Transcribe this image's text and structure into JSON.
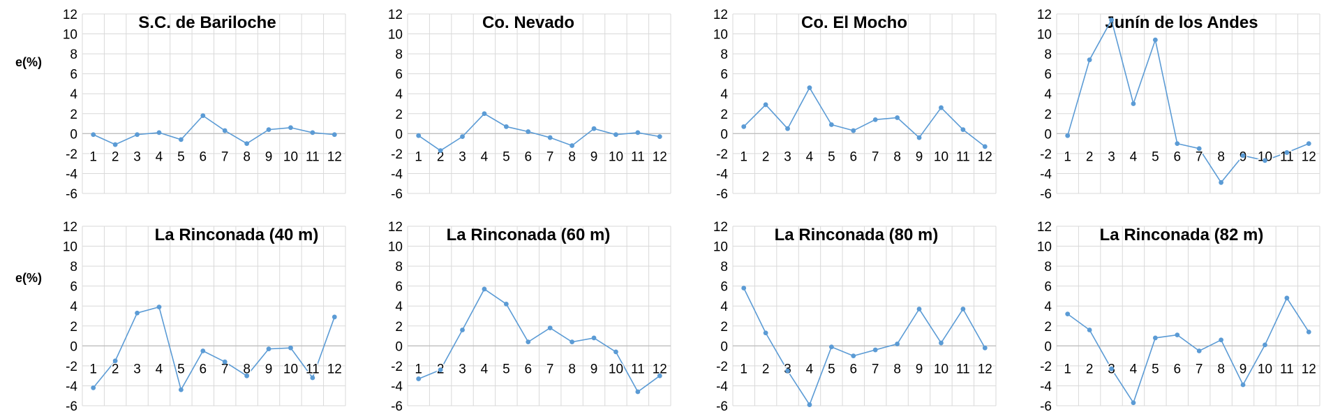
{
  "figure": {
    "row_labels": [
      "e(%)",
      "e(%)"
    ]
  },
  "chart_data": [
    {
      "type": "line",
      "title": "S.C. de Bariloche",
      "ylabel": "e(%)",
      "categories": [
        "1",
        "2",
        "3",
        "4",
        "5",
        "6",
        "7",
        "8",
        "9",
        "10",
        "11",
        "12"
      ],
      "ylim": [
        -6,
        12
      ],
      "yticks": [
        "12",
        "10",
        "8",
        "6",
        "4",
        "2",
        "0",
        "-2",
        "-4",
        "-6"
      ],
      "grid": true,
      "color": "#5b9bd5",
      "values": [
        -0.1,
        -1.1,
        -0.1,
        0.1,
        -0.6,
        1.8,
        0.3,
        -1.0,
        0.4,
        0.6,
        0.1,
        -0.1
      ]
    },
    {
      "type": "line",
      "title": "Co. Nevado",
      "ylabel": "",
      "categories": [
        "1",
        "2",
        "3",
        "4",
        "5",
        "6",
        "7",
        "8",
        "9",
        "10",
        "11",
        "12"
      ],
      "ylim": [
        -6,
        12
      ],
      "yticks": [
        "12",
        "10",
        "8",
        "6",
        "4",
        "2",
        "0",
        "-2",
        "-4",
        "-6"
      ],
      "grid": true,
      "color": "#5b9bd5",
      "values": [
        -0.2,
        -1.7,
        -0.3,
        2.0,
        0.7,
        0.2,
        -0.4,
        -1.2,
        0.5,
        -0.1,
        0.1,
        -0.3
      ]
    },
    {
      "type": "line",
      "title": "Co. El Mocho",
      "ylabel": "",
      "categories": [
        "1",
        "2",
        "3",
        "4",
        "5",
        "6",
        "7",
        "8",
        "9",
        "10",
        "11",
        "12"
      ],
      "ylim": [
        -6,
        12
      ],
      "yticks": [
        "12",
        "10",
        "8",
        "6",
        "4",
        "2",
        "0",
        "-2",
        "-4",
        "-6"
      ],
      "grid": true,
      "color": "#5b9bd5",
      "values": [
        0.7,
        2.9,
        0.5,
        4.6,
        0.9,
        0.3,
        1.4,
        1.6,
        -0.4,
        2.6,
        0.4,
        -1.3
      ]
    },
    {
      "type": "line",
      "title": "Junín de los Andes",
      "ylabel": "",
      "categories": [
        "1",
        "2",
        "3",
        "4",
        "5",
        "6",
        "7",
        "8",
        "9",
        "10",
        "11",
        "12"
      ],
      "ylim": [
        -6,
        12
      ],
      "yticks": [
        "12",
        "10",
        "8",
        "6",
        "4",
        "2",
        "0",
        "-2",
        "-4",
        "-6"
      ],
      "grid": true,
      "color": "#5b9bd5",
      "values": [
        -0.2,
        7.4,
        11.4,
        3.0,
        9.4,
        -1.0,
        -1.5,
        -4.9,
        -2.2,
        -2.7,
        -1.9,
        -1.0
      ]
    },
    {
      "type": "line",
      "title": "La Rinconada (40 m)",
      "ylabel": "e(%)",
      "categories": [
        "1",
        "2",
        "3",
        "4",
        "5",
        "6",
        "7",
        "8",
        "9",
        "10",
        "11",
        "12"
      ],
      "ylim": [
        -6,
        12
      ],
      "yticks": [
        "12",
        "10",
        "8",
        "6",
        "4",
        "2",
        "0",
        "-2",
        "-4",
        "-6"
      ],
      "grid": true,
      "color": "#5b9bd5",
      "values": [
        -4.2,
        -1.5,
        3.3,
        3.9,
        -4.4,
        -0.5,
        -1.6,
        -3.0,
        -0.3,
        -0.2,
        -3.2,
        2.9
      ]
    },
    {
      "type": "line",
      "title": "La Rinconada (60 m)",
      "ylabel": "",
      "categories": [
        "1",
        "2",
        "3",
        "4",
        "5",
        "6",
        "7",
        "8",
        "9",
        "10",
        "11",
        "12"
      ],
      "ylim": [
        -6,
        12
      ],
      "yticks": [
        "12",
        "10",
        "8",
        "6",
        "4",
        "2",
        "0",
        "-2",
        "-4",
        "-6"
      ],
      "grid": true,
      "color": "#5b9bd5",
      "values": [
        -3.3,
        -2.4,
        1.6,
        5.7,
        4.2,
        0.4,
        1.8,
        0.4,
        0.8,
        -0.6,
        -4.6,
        -3.0
      ]
    },
    {
      "type": "line",
      "title": "La Rinconada (80 m)",
      "ylabel": "",
      "categories": [
        "1",
        "2",
        "3",
        "4",
        "5",
        "6",
        "7",
        "8",
        "9",
        "10",
        "11",
        "12"
      ],
      "ylim": [
        -6,
        12
      ],
      "yticks": [
        "12",
        "10",
        "8",
        "6",
        "4",
        "2",
        "0",
        "-2",
        "-4",
        "-6"
      ],
      "grid": true,
      "color": "#5b9bd5",
      "values": [
        5.8,
        1.3,
        -2.5,
        -5.9,
        -0.1,
        -1.0,
        -0.4,
        0.2,
        3.7,
        0.3,
        3.7,
        -0.2
      ]
    },
    {
      "type": "line",
      "title": "La Rinconada (82 m)",
      "ylabel": "",
      "categories": [
        "1",
        "2",
        "3",
        "4",
        "5",
        "6",
        "7",
        "8",
        "9",
        "10",
        "11",
        "12"
      ],
      "ylim": [
        -6,
        12
      ],
      "yticks": [
        "12",
        "10",
        "8",
        "6",
        "4",
        "2",
        "0",
        "-2",
        "-4",
        "-6"
      ],
      "grid": true,
      "color": "#5b9bd5",
      "values": [
        3.2,
        1.6,
        -2.3,
        -5.7,
        0.8,
        1.1,
        -0.5,
        0.6,
        -3.9,
        0.1,
        4.8,
        1.4
      ]
    }
  ]
}
